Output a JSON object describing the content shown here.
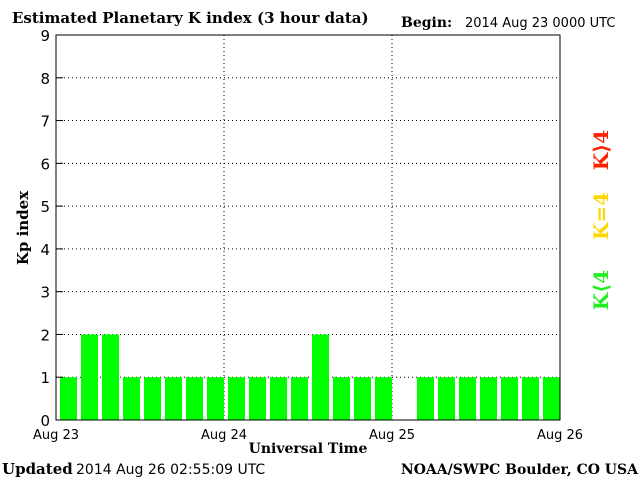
{
  "title": "Estimated Planetary K index (3 hour data)",
  "begin_label": "Begin:",
  "begin_value": "2014 Aug 23 0000 UTC",
  "updated_label": "Updated",
  "updated_value": "2014 Aug 26 02:55:09 UTC",
  "credit": "NOAA/SWPC Boulder, CO USA",
  "legend": {
    "high": {
      "label": "K⟩4",
      "color": "#ff2000"
    },
    "equal": {
      "label": "K=4",
      "color": "#ffd700"
    },
    "low": {
      "label": "K⟨4",
      "color": "#22ee22"
    }
  },
  "chart_data": {
    "type": "bar",
    "title": "Estimated Planetary K index (3 hour data)",
    "xlabel": "Universal Time",
    "ylabel": "Kp index",
    "ylim": [
      0,
      9
    ],
    "y_ticks": [
      "0",
      "1",
      "2",
      "3",
      "4",
      "5",
      "6",
      "7",
      "8",
      "9"
    ],
    "x_ticks": [
      "Aug 23",
      "Aug 24",
      "Aug 25",
      "Aug 26"
    ],
    "grid": true,
    "bar_color": "#00ff00",
    "categories": [
      "Aug 23 00",
      "Aug 23 03",
      "Aug 23 06",
      "Aug 23 09",
      "Aug 23 12",
      "Aug 23 15",
      "Aug 23 18",
      "Aug 23 21",
      "Aug 24 00",
      "Aug 24 03",
      "Aug 24 06",
      "Aug 24 09",
      "Aug 24 12",
      "Aug 24 15",
      "Aug 24 18",
      "Aug 24 21",
      "Aug 25 00",
      "Aug 25 03",
      "Aug 25 06",
      "Aug 25 09",
      "Aug 25 12",
      "Aug 25 15",
      "Aug 25 18",
      "Aug 25 21"
    ],
    "values": [
      1,
      2,
      2,
      1,
      1,
      1,
      1,
      1,
      1,
      1,
      1,
      1,
      2,
      1,
      1,
      1,
      null,
      1,
      1,
      1,
      1,
      1,
      1,
      1
    ]
  }
}
